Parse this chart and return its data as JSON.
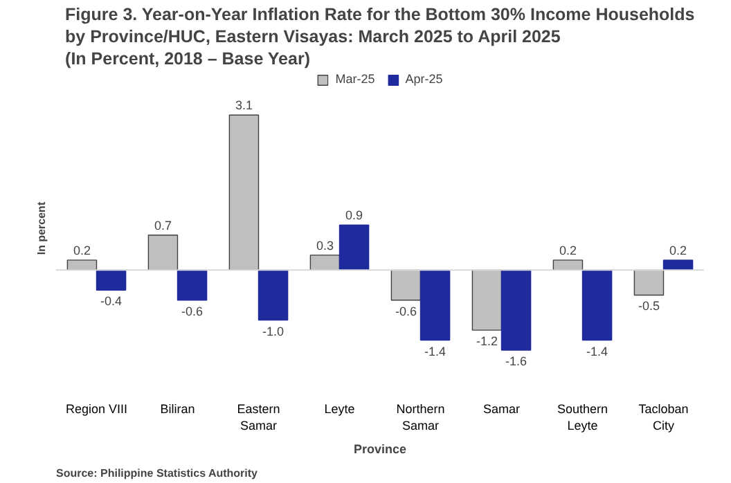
{
  "chart_data": {
    "type": "bar",
    "title": "Figure 3. Year-on-Year Inflation Rate for the Bottom 30% Income Households\nby Province/HUC, Eastern Visayas: March 2025 to April 2025\n(In Percent, 2018 – Base Year)",
    "xlabel": "Province",
    "ylabel": "In percent",
    "categories": [
      "Region VIII",
      "Biliran",
      "Eastern\nSamar",
      "Leyte",
      "Northern\nSamar",
      "Samar",
      "Southern\nLeyte",
      "Tacloban\nCity"
    ],
    "series": [
      {
        "name": "Mar-25",
        "color": "#bfbfbf",
        "values": [
          0.2,
          0.7,
          3.1,
          0.3,
          -0.6,
          -1.2,
          0.2,
          -0.5
        ],
        "value_labels": [
          "0.2",
          "0.7",
          "3.1",
          "0.3",
          "-0.6",
          "-1.2",
          "0.2",
          "-0.5"
        ]
      },
      {
        "name": "Apr-25",
        "color": "#1f2a9c",
        "values": [
          -0.4,
          -0.6,
          -1.0,
          0.9,
          -1.4,
          -1.6,
          -1.4,
          0.2
        ],
        "value_labels": [
          "-0.4",
          "-0.6",
          "-1.0",
          "0.9",
          "-1.4",
          "-1.6",
          "-1.4",
          "0.2"
        ]
      }
    ],
    "tick_labels": "x",
    "grid": false,
    "legend": "top",
    "annotations": [
      "Source: Philippine Statistics Authority"
    ]
  }
}
